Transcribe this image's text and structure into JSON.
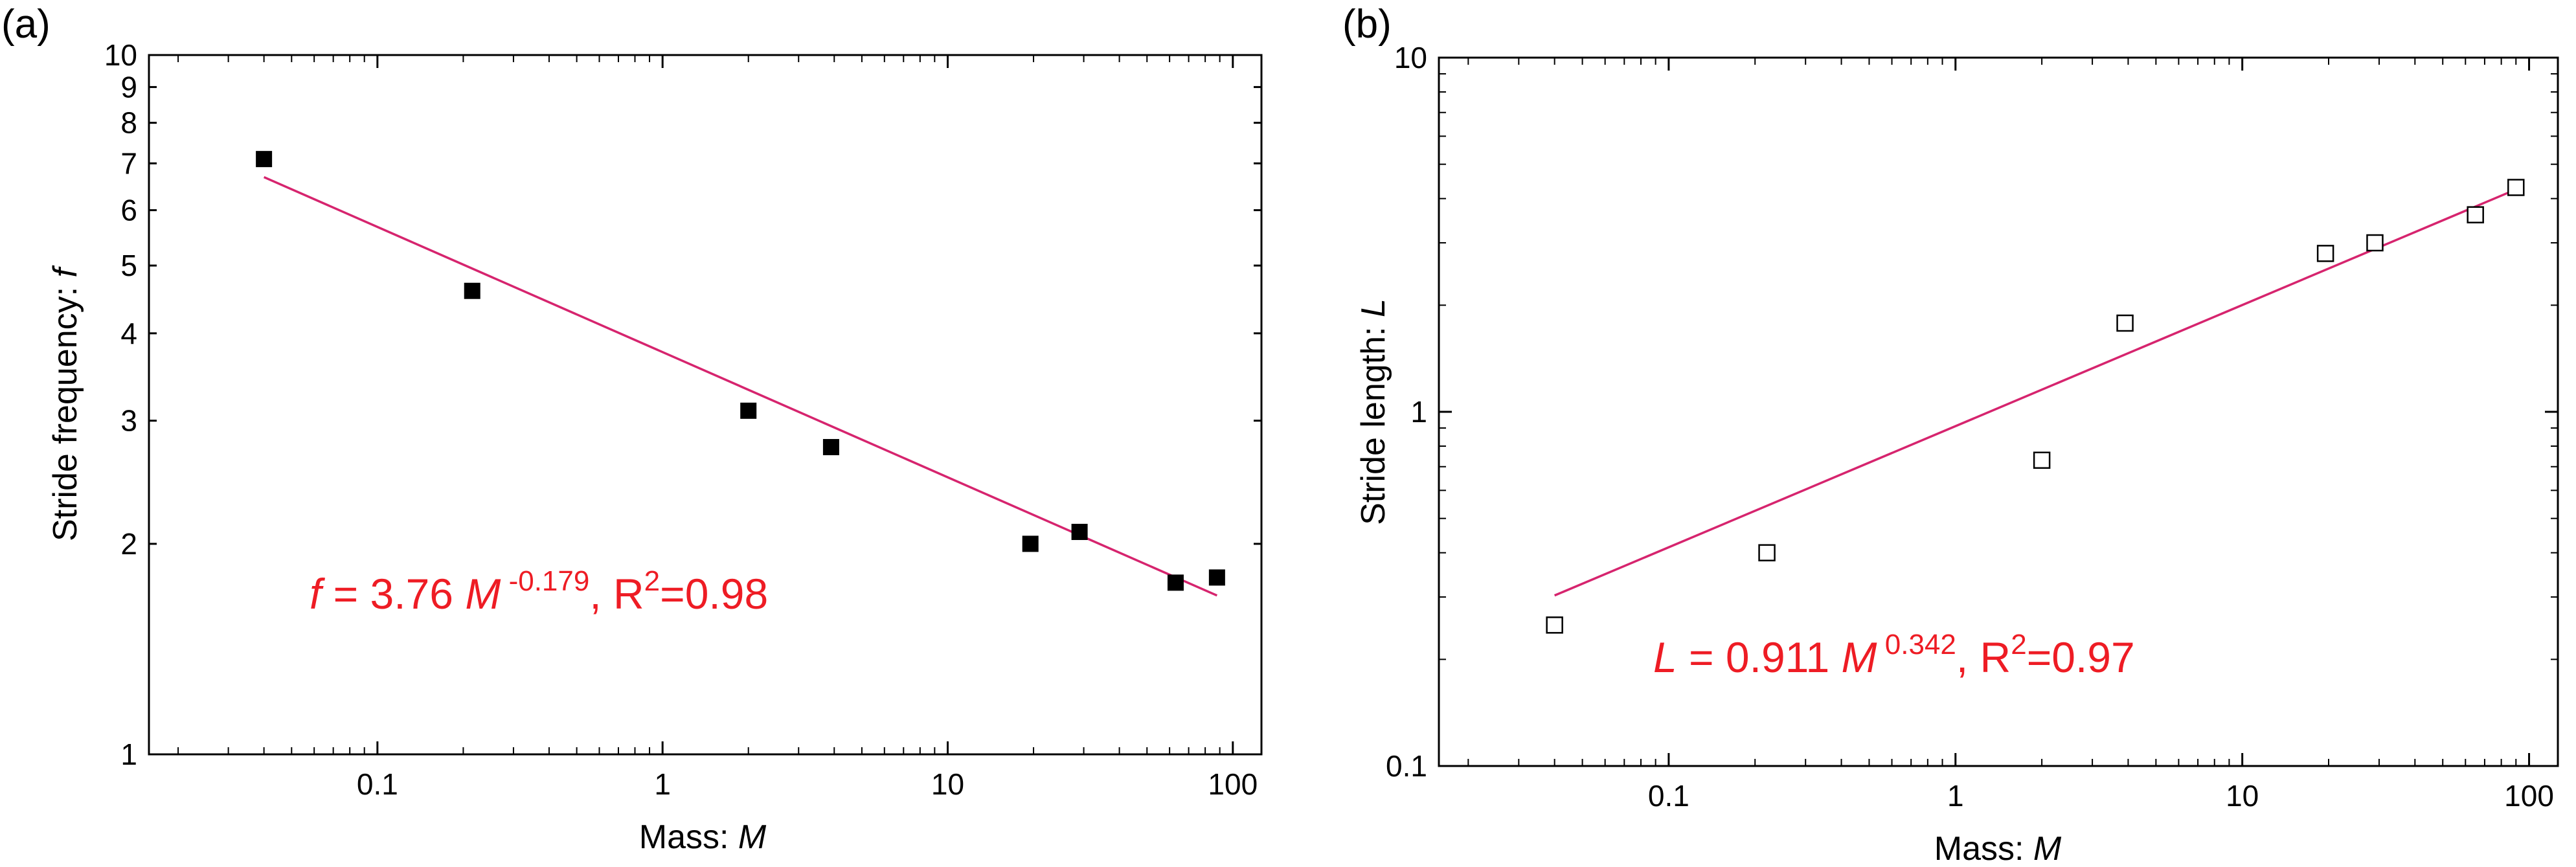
{
  "colors": {
    "fit": "#d6246e",
    "equation": "#ee1c24",
    "axis": "#000000",
    "marker": "#000000"
  },
  "chart_data": [
    {
      "type": "scatter",
      "panel_label": "(a)",
      "xlabel_text": "Mass: ",
      "xlabel_var": "M",
      "ylabel_text": "Stride frequency: ",
      "ylabel_var": "f",
      "xscale": "log",
      "yscale": "log",
      "xlim": [
        0.0158,
        126
      ],
      "ylim": [
        1,
        10
      ],
      "x_ticks": [
        {
          "value": 0.1,
          "label": "0.1"
        },
        {
          "value": 1,
          "label": "1"
        },
        {
          "value": 10,
          "label": "10"
        },
        {
          "value": 100,
          "label": "100"
        }
      ],
      "y_ticks": [
        {
          "value": 1,
          "label": "1"
        },
        {
          "value": 2,
          "label": "2"
        },
        {
          "value": 3,
          "label": "3"
        },
        {
          "value": 4,
          "label": "4"
        },
        {
          "value": 5,
          "label": "5"
        },
        {
          "value": 6,
          "label": "6"
        },
        {
          "value": 7,
          "label": "7"
        },
        {
          "value": 8,
          "label": "8"
        },
        {
          "value": 9,
          "label": "9"
        },
        {
          "value": 10,
          "label": "10"
        }
      ],
      "marker": "filled-square",
      "x": [
        0.04,
        0.215,
        2.0,
        3.9,
        19.5,
        29.0,
        63.0,
        88.0
      ],
      "y": [
        7.1,
        4.6,
        3.1,
        2.75,
        2.0,
        2.08,
        1.76,
        1.79
      ],
      "fit": {
        "a": 3.76,
        "b": -0.179,
        "x_range": [
          0.04,
          88
        ]
      },
      "equation": {
        "var": "f",
        "pre": " = 3.76 ",
        "mvar": "M",
        "exp": " -0.179",
        "mid": ", R",
        "r2": "2",
        "post": "=0.98"
      }
    },
    {
      "type": "scatter",
      "panel_label": "(b)",
      "xlabel_text": "Mass: ",
      "xlabel_var": "M",
      "ylabel_text": "Stride length: ",
      "ylabel_var": "L",
      "xscale": "log",
      "yscale": "log",
      "xlim": [
        0.0158,
        126
      ],
      "ylim": [
        0.1,
        10
      ],
      "x_ticks": [
        {
          "value": 0.1,
          "label": "0.1"
        },
        {
          "value": 1,
          "label": "1"
        },
        {
          "value": 10,
          "label": "10"
        },
        {
          "value": 100,
          "label": "100"
        }
      ],
      "y_ticks": [
        {
          "value": 0.1,
          "label": "0.1"
        },
        {
          "value": 1,
          "label": "1"
        },
        {
          "value": 10,
          "label": "10"
        }
      ],
      "marker": "open-square",
      "x": [
        0.04,
        0.22,
        2.0,
        3.9,
        19.5,
        29.0,
        65.0,
        90.0
      ],
      "y": [
        0.25,
        0.4,
        0.73,
        1.78,
        2.8,
        3.0,
        3.6,
        4.3
      ],
      "fit": {
        "a": 0.911,
        "b": 0.342,
        "x_range": [
          0.04,
          90
        ]
      },
      "equation": {
        "var": "L",
        "pre": " = 0.911 ",
        "mvar": "M",
        "exp": " 0.342",
        "mid": ", R",
        "r2": "2",
        "post": "=0.97"
      }
    }
  ]
}
